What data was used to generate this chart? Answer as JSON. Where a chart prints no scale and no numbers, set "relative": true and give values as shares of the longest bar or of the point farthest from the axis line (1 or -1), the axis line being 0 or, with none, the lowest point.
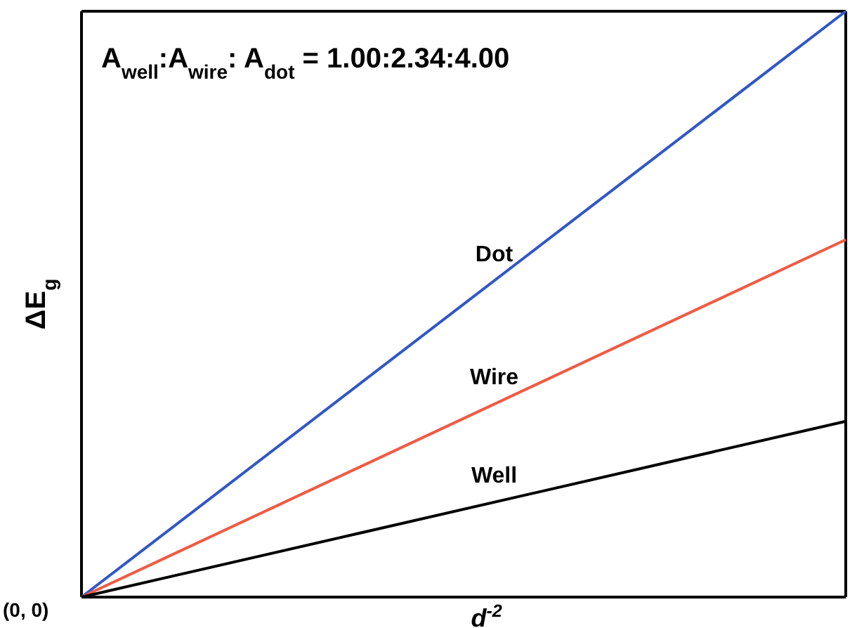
{
  "chart_data": {
    "type": "line",
    "relative": true,
    "xlabel": "d$^{-2}$",
    "ylabel": "ΔE$_{g}$",
    "annotations": [
      "A$_{well}$:A$_{wire}$: A$_{dot}$ = 1.00:2.34:4.00",
      "(0, 0)"
    ],
    "categories": [
      null,
      null
    ],
    "series": [
      {
        "name": "Dot",
        "color": "#3057c8",
        "values": [
          0,
          1
        ]
      },
      {
        "name": "Wire",
        "color": "#f25a42",
        "values": [
          0,
          0.61
        ]
      },
      {
        "name": "Well",
        "color": "#000000",
        "values": [
          0,
          0.3
        ]
      }
    ]
  }
}
